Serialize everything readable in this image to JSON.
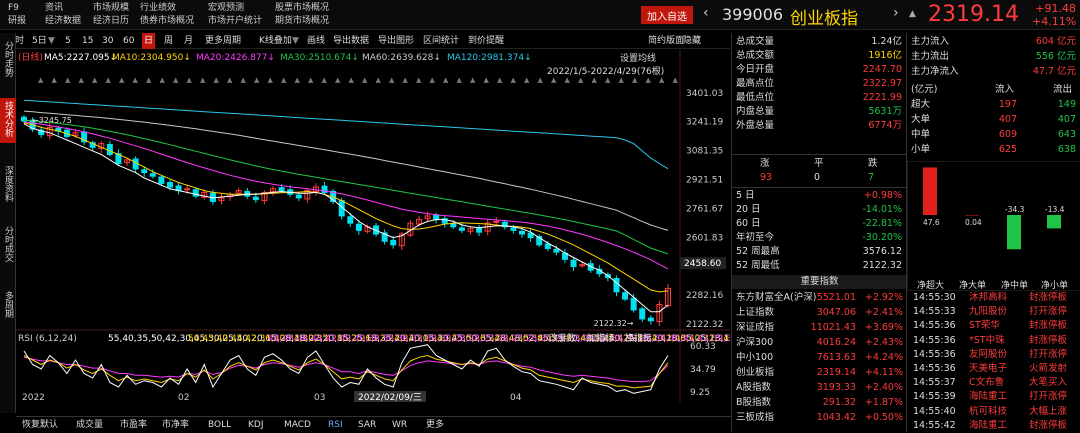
{
  "topbar": {
    "f9": "F9",
    "research": "研报",
    "info": "资讯",
    "econ_data": "经济数据",
    "market_scale": "市场规模",
    "econ_calendar": "经济日历",
    "industry_perf": "行业绩效",
    "bond_overview": "债券市场概况",
    "macro_forecast": "宏观预测",
    "market_stats": "市场开户统计",
    "stock_overview": "股票市场概况",
    "futures_overview": "期货市场概况",
    "add_fav": "加入自选",
    "code": "399006",
    "name": "创业板指",
    "price": "2319.14",
    "change": "+91.48",
    "change_pct": "+4.11%"
  },
  "toolbar": [
    "分时",
    "5日",
    "5",
    "15",
    "30",
    "60",
    "日",
    "周",
    "月",
    "更多周期",
    "K线叠加",
    "画线",
    "导出数据",
    "导出图形",
    "区间统计",
    "到价提醒",
    "简约版面",
    "隐藏"
  ],
  "toolbar_active": "日",
  "sidetabs": [
    {
      "label": "分时走势",
      "active": false
    },
    {
      "label": "技术分析",
      "active": true
    },
    {
      "label": "深度资料",
      "active": false
    },
    {
      "label": "分时成交",
      "active": false
    },
    {
      "label": "多周期",
      "active": false
    }
  ],
  "ma_legend": {
    "prefix": "(日线)",
    "ma5": "MA5:2227.095↓",
    "ma10": "MA10:2304.950↓",
    "ma20": "MA20:2426.877↓",
    "ma30": "MA30:2510.674↓",
    "ma60": "MA60:2639.628↓",
    "ma120": "MA120:2981.374↓",
    "settings": "设置均线",
    "range": "2022/1/5-2022/4/29(76根)"
  },
  "colors": {
    "ma5": "#ffffff",
    "ma10": "#ffd400",
    "ma20": "#ff39ff",
    "ma30": "#1fc447",
    "ma60": "#c8c8c8",
    "ma120": "#28c8e8",
    "up": "#ff3b3b",
    "down": "#00e0f0"
  },
  "chart_data": {
    "type": "candlestick",
    "ylim": [
      2100,
      3450
    ],
    "y_ticks": [
      "3401.03",
      "3241.19",
      "3081.35",
      "2921.51",
      "2761.67",
      "2601.83",
      "2442.00",
      "2282.16",
      "2122.32"
    ],
    "current_price_label": "2458.60",
    "high_label": "3245.75",
    "low_label": "2122.32",
    "x_ticks": [
      "2022",
      "02",
      "03",
      "04"
    ],
    "cursor_date": "2022/02/09/三",
    "closes": [
      3245,
      3200,
      3170,
      3210,
      3190,
      3160,
      3180,
      3130,
      3100,
      3120,
      3060,
      3010,
      3030,
      2980,
      2960,
      2940,
      2900,
      2880,
      2860,
      2870,
      2830,
      2850,
      2800,
      2820,
      2840,
      2860,
      2830,
      2810,
      2850,
      2870,
      2860,
      2840,
      2820,
      2860,
      2880,
      2850,
      2800,
      2720,
      2680,
      2640,
      2660,
      2620,
      2580,
      2560,
      2620,
      2680,
      2700,
      2720,
      2700,
      2680,
      2660,
      2640,
      2650,
      2630,
      2680,
      2690,
      2660,
      2640,
      2620,
      2600,
      2560,
      2540,
      2520,
      2480,
      2440,
      2450,
      2420,
      2400,
      2380,
      2300,
      2260,
      2200,
      2150,
      2140,
      2230,
      2319
    ],
    "ma5": [
      3230,
      3205,
      3190,
      3180,
      3160,
      3140,
      3120,
      3100,
      3080,
      3060,
      3030,
      3000,
      2980,
      2960,
      2930,
      2910,
      2890,
      2870,
      2860,
      2850,
      2840,
      2830,
      2820,
      2825,
      2830,
      2835,
      2840,
      2840,
      2845,
      2850,
      2855,
      2850,
      2845,
      2845,
      2850,
      2840,
      2810,
      2770,
      2730,
      2690,
      2660,
      2640,
      2620,
      2600,
      2610,
      2640,
      2670,
      2690,
      2700,
      2700,
      2690,
      2670,
      2660,
      2655,
      2660,
      2665,
      2665,
      2660,
      2650,
      2630,
      2600,
      2570,
      2545,
      2515,
      2490,
      2465,
      2440,
      2420,
      2390,
      2350,
      2310,
      2270,
      2230,
      2190,
      2190,
      2227
    ],
    "ma10": [
      3235,
      3225,
      3210,
      3200,
      3190,
      3175,
      3160,
      3140,
      3120,
      3100,
      3080,
      3060,
      3040,
      3015,
      2990,
      2965,
      2945,
      2925,
      2905,
      2890,
      2875,
      2860,
      2850,
      2845,
      2840,
      2840,
      2840,
      2840,
      2842,
      2845,
      2848,
      2850,
      2852,
      2855,
      2850,
      2840,
      2825,
      2805,
      2780,
      2755,
      2730,
      2705,
      2685,
      2665,
      2650,
      2645,
      2648,
      2655,
      2665,
      2675,
      2680,
      2682,
      2680,
      2678,
      2675,
      2670,
      2665,
      2662,
      2658,
      2650,
      2635,
      2620,
      2600,
      2580,
      2560,
      2535,
      2510,
      2485,
      2460,
      2430,
      2400,
      2370,
      2340,
      2310,
      2300,
      2305
    ],
    "ma20": [
      3240,
      3235,
      3228,
      3220,
      3212,
      3204,
      3195,
      3185,
      3174,
      3162,
      3150,
      3136,
      3122,
      3108,
      3093,
      3078,
      3062,
      3046,
      3030,
      3015,
      3000,
      2986,
      2972,
      2958,
      2945,
      2933,
      2922,
      2912,
      2903,
      2895,
      2888,
      2882,
      2876,
      2870,
      2864,
      2858,
      2850,
      2842,
      2832,
      2820,
      2808,
      2795,
      2782,
      2770,
      2758,
      2748,
      2740,
      2733,
      2727,
      2722,
      2718,
      2714,
      2710,
      2706,
      2702,
      2698,
      2694,
      2690,
      2686,
      2680,
      2672,
      2664,
      2654,
      2643,
      2631,
      2618,
      2604,
      2589,
      2573,
      2556,
      2538,
      2519,
      2499,
      2478,
      2452,
      2427
    ],
    "ma30": [
      3250,
      3246,
      3242,
      3237,
      3232,
      3226,
      3220,
      3213,
      3205,
      3197,
      3188,
      3179,
      3169,
      3159,
      3148,
      3137,
      3126,
      3114,
      3102,
      3090,
      3078,
      3066,
      3054,
      3042,
      3030,
      3019,
      3008,
      2997,
      2987,
      2977,
      2968,
      2959,
      2950,
      2942,
      2934,
      2926,
      2918,
      2910,
      2902,
      2894,
      2886,
      2878,
      2870,
      2862,
      2854,
      2846,
      2838,
      2830,
      2822,
      2814,
      2806,
      2798,
      2790,
      2782,
      2774,
      2766,
      2758,
      2750,
      2742,
      2734,
      2726,
      2717,
      2708,
      2699,
      2689,
      2679,
      2669,
      2659,
      2648,
      2637,
      2614,
      2590,
      2566,
      2542,
      2526,
      2510
    ],
    "ma60": [
      3300,
      3296,
      3292,
      3288,
      3284,
      3280,
      3276,
      3272,
      3268,
      3264,
      3259,
      3254,
      3249,
      3244,
      3239,
      3233,
      3227,
      3221,
      3215,
      3209,
      3202,
      3195,
      3188,
      3181,
      3174,
      3166,
      3158,
      3150,
      3142,
      3134,
      3126,
      3118,
      3110,
      3102,
      3094,
      3086,
      3078,
      3070,
      3062,
      3054,
      3045,
      3036,
      3027,
      3018,
      3009,
      3000,
      2991,
      2982,
      2973,
      2964,
      2955,
      2946,
      2937,
      2928,
      2918,
      2908,
      2898,
      2888,
      2878,
      2868,
      2857,
      2846,
      2835,
      2824,
      2812,
      2800,
      2788,
      2776,
      2764,
      2752,
      2730,
      2710,
      2690,
      2670,
      2655,
      2640
    ],
    "ma120": [
      3360,
      3357,
      3354,
      3351,
      3348,
      3345,
      3342,
      3339,
      3336,
      3333,
      3330,
      3327,
      3324,
      3321,
      3318,
      3315,
      3312,
      3309,
      3306,
      3303,
      3300,
      3297,
      3294,
      3291,
      3288,
      3285,
      3282,
      3279,
      3276,
      3273,
      3270,
      3267,
      3264,
      3261,
      3258,
      3255,
      3252,
      3249,
      3246,
      3243,
      3240,
      3237,
      3234,
      3231,
      3228,
      3225,
      3222,
      3219,
      3216,
      3213,
      3210,
      3207,
      3204,
      3201,
      3198,
      3195,
      3192,
      3189,
      3186,
      3183,
      3180,
      3177,
      3174,
      3171,
      3168,
      3165,
      3162,
      3159,
      3156,
      3153,
      3140,
      3120,
      3080,
      3040,
      3010,
      2981
    ]
  },
  "rsi": {
    "label": "RSI (6,12,24)",
    "rsi1": [
      55,
      40,
      35,
      50,
      42,
      30,
      45,
      30,
      25,
      40,
      20,
      15,
      28,
      18,
      22,
      20,
      15,
      25,
      18,
      35,
      20,
      40,
      15,
      30,
      45,
      50,
      35,
      28,
      48,
      52,
      45,
      35,
      30,
      48,
      55,
      40,
      25,
      15,
      20,
      18,
      35,
      25,
      18,
      15,
      42,
      58,
      60,
      62,
      50,
      45,
      40,
      35,
      45,
      38,
      55,
      58,
      45,
      38,
      32,
      30,
      22,
      20,
      18,
      15,
      12,
      25,
      20,
      18,
      16,
      10,
      12,
      8,
      10,
      12,
      35,
      50
    ],
    "rsi2": [
      50,
      45,
      40,
      45,
      42,
      36,
      40,
      34,
      30,
      35,
      28,
      22,
      26,
      22,
      24,
      22,
      20,
      24,
      22,
      30,
      26,
      34,
      24,
      30,
      38,
      42,
      38,
      34,
      42,
      45,
      42,
      38,
      34,
      42,
      46,
      40,
      32,
      24,
      26,
      24,
      32,
      28,
      24,
      22,
      34,
      44,
      48,
      50,
      46,
      44,
      42,
      40,
      42,
      40,
      46,
      48,
      44,
      40,
      36,
      34,
      28,
      26,
      24,
      22,
      20,
      24,
      22,
      20,
      19,
      16,
      16,
      14,
      15,
      16,
      30,
      42
    ],
    "rsi3": [
      48,
      46,
      44,
      44,
      42,
      40,
      40,
      38,
      36,
      36,
      33,
      30,
      30,
      28,
      28,
      27,
      26,
      27,
      26,
      30,
      29,
      33,
      29,
      31,
      36,
      39,
      38,
      36,
      40,
      42,
      41,
      39,
      37,
      40,
      42,
      40,
      36,
      32,
      32,
      30,
      33,
      31,
      29,
      28,
      33,
      39,
      42,
      44,
      43,
      42,
      41,
      40,
      41,
      40,
      43,
      44,
      42,
      40,
      38,
      37,
      34,
      32,
      30,
      28,
      27,
      28,
      27,
      26,
      25,
      23,
      22,
      21,
      21,
      22,
      30,
      39
    ],
    "btn_param": "改参数",
    "btn_add": "加指标",
    "btn_switch": "换指标",
    "y_ticks": [
      "60.33",
      "34.79",
      "9.25"
    ],
    "ylim": [
      5,
      65
    ]
  },
  "bottom_tabs": [
    "恢复默认",
    "成交量",
    "市盈率",
    "市净率",
    "BOLL",
    "KDJ",
    "MACD",
    "RSI",
    "SAR",
    "WR",
    "更多"
  ],
  "bottom_active": "RSI",
  "stats": [
    {
      "label": "总成交量",
      "value": "1.24亿",
      "color": "white"
    },
    {
      "label": "总成交额",
      "value": "1916亿",
      "color": "yellow"
    },
    {
      "label": "今日开盘",
      "value": "2247.70",
      "color": "red"
    },
    {
      "label": "最高点位",
      "value": "2322.97",
      "color": "red"
    },
    {
      "label": "最低点位",
      "value": "2221.99",
      "color": "red"
    },
    {
      "label": "内盘总量",
      "value": "5631万",
      "color": "green"
    },
    {
      "label": "外盘总量",
      "value": "6774万",
      "color": "red"
    }
  ],
  "breadth": {
    "h_up": "涨",
    "h_flat": "平",
    "h_down": "跌",
    "up": "93",
    "flat": "0",
    "down": "7"
  },
  "perf": [
    {
      "label": "5 日",
      "value": "+0.98%",
      "color": "red"
    },
    {
      "label": "20 日",
      "value": "-14.01%",
      "color": "green"
    },
    {
      "label": "60 日",
      "value": "-22.81%",
      "color": "green"
    },
    {
      "label": "年初至今",
      "value": "-30.20%",
      "color": "green"
    },
    {
      "label": "52 周最高",
      "value": "3576.12",
      "color": "white"
    },
    {
      "label": "52 周最低",
      "value": "2122.32",
      "color": "white"
    }
  ],
  "indices_title": "重要指数",
  "indices": [
    {
      "name": "东方财富全A(沪深)",
      "value": "5521.01",
      "pct": "+2.92%"
    },
    {
      "name": "上证指数",
      "value": "3047.06",
      "pct": "+2.41%"
    },
    {
      "name": "深证成指",
      "value": "11021.43",
      "pct": "+3.69%"
    },
    {
      "name": "沪深300",
      "value": "4016.24",
      "pct": "+2.43%"
    },
    {
      "name": "中小100",
      "value": "7613.63",
      "pct": "+4.24%"
    },
    {
      "name": "创业板指",
      "value": "2319.14",
      "pct": "+4.11%"
    },
    {
      "name": "A股指数",
      "value": "3193.33",
      "pct": "+2.40%"
    },
    {
      "name": "B股指数",
      "value": "291.32",
      "pct": "+1.87%"
    },
    {
      "name": "三板成指",
      "value": "1043.42",
      "pct": "+0.50%"
    }
  ],
  "flow": {
    "inflow_label": "主力流入",
    "inflow": "604 亿元",
    "outflow_label": "主力流出",
    "outflow": "556 亿元",
    "net_label": "主力净流入",
    "net": "47.7 亿元",
    "unit": "(亿元)",
    "h_in": "流入",
    "h_out": "流出",
    "rows": [
      {
        "label": "超大",
        "in": "197",
        "out": "149"
      },
      {
        "label": "大单",
        "in": "407",
        "out": "407"
      },
      {
        "label": "中单",
        "in": "609",
        "out": "643"
      },
      {
        "label": "小单",
        "in": "625",
        "out": "638"
      }
    ],
    "bars": [
      {
        "name": "净超大",
        "value": 47.6,
        "label": "47.6"
      },
      {
        "name": "净大单",
        "value": 0.04,
        "label": "0.04"
      },
      {
        "name": "净中单",
        "value": -34.3,
        "label": "-34.3"
      },
      {
        "name": "净小单",
        "value": -13.4,
        "label": "-13.4"
      }
    ]
  },
  "ticks": [
    {
      "time": "14:55:30",
      "name": "沐邦高科",
      "event": "封涨停板"
    },
    {
      "time": "14:55:33",
      "name": "九阳股份",
      "event": "打开涨停"
    },
    {
      "time": "14:55:36",
      "name": "ST荣华",
      "event": "封涨停板"
    },
    {
      "time": "14:55:36",
      "name": "*ST中珠",
      "event": "封涨停板"
    },
    {
      "time": "14:55:36",
      "name": "友阿股份",
      "event": "打开涨停"
    },
    {
      "time": "14:55:36",
      "name": "天美电子",
      "event": "火箭发射"
    },
    {
      "time": "14:55:37",
      "name": "C文布鲁",
      "event": "大笔买入"
    },
    {
      "time": "14:55:39",
      "name": "海陆重工",
      "event": "打开涨停"
    },
    {
      "time": "14:55:40",
      "name": "杭可科技",
      "event": "大幅上涨"
    },
    {
      "time": "14:55:42",
      "name": "海陆重工",
      "event": "封涨停板"
    }
  ]
}
